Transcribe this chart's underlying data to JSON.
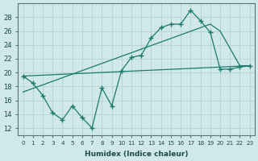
{
  "xlabel": "Humidex (Indice chaleur)",
  "background_color": "#d0e8e8",
  "grid_color": "#b8d4d4",
  "line_color": "#1a7a6e",
  "xlim": [
    -0.5,
    23.5
  ],
  "ylim": [
    11,
    30
  ],
  "xticks": [
    0,
    1,
    2,
    3,
    4,
    5,
    6,
    7,
    8,
    9,
    10,
    11,
    12,
    13,
    14,
    15,
    16,
    17,
    18,
    19,
    20,
    21,
    22,
    23
  ],
  "yticks": [
    12,
    14,
    16,
    18,
    20,
    22,
    24,
    26,
    28
  ],
  "series1_x": [
    0,
    1,
    2,
    3,
    4,
    5,
    6,
    7,
    8,
    9,
    10,
    11,
    12,
    13,
    14,
    15,
    16,
    17,
    18,
    19,
    20,
    21,
    22,
    23
  ],
  "series1_y": [
    19.5,
    18.5,
    16.7,
    14.2,
    13.2,
    15.2,
    13.5,
    12.0,
    17.8,
    15.2,
    20.3,
    22.2,
    22.5,
    25.0,
    26.5,
    27.0,
    27.0,
    29.0,
    27.5,
    25.8,
    20.5,
    20.5,
    20.8,
    21.0
  ],
  "series2_x": [
    0,
    23
  ],
  "series2_y": [
    19.5,
    21.0
  ],
  "series3_x": [
    0,
    19,
    20,
    22,
    23
  ],
  "series3_y": [
    17.2,
    27.0,
    26.0,
    21.0,
    21.0
  ]
}
